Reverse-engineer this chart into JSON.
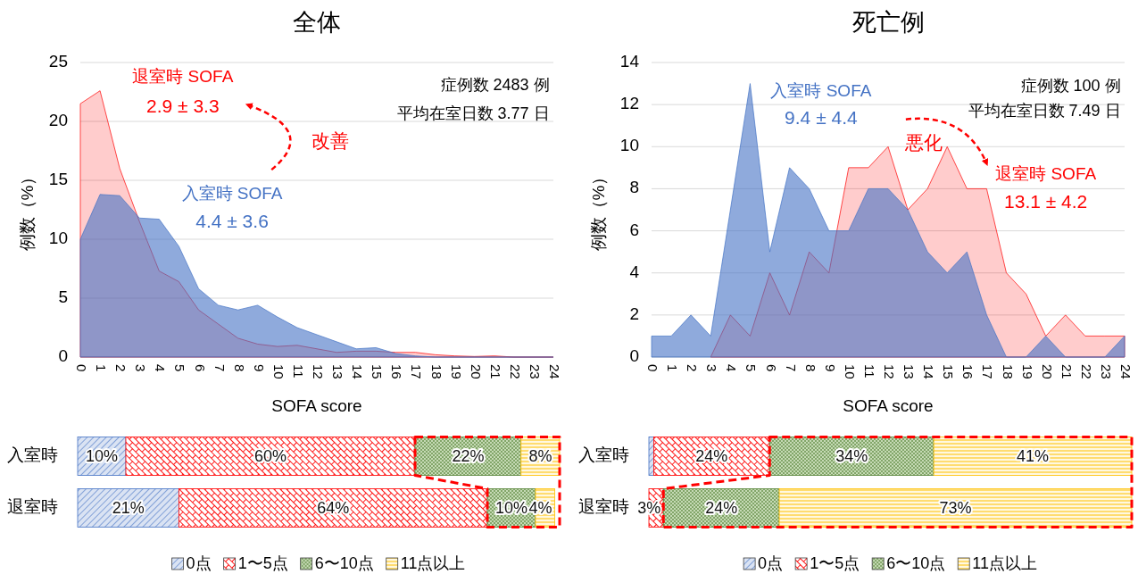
{
  "chart_data": [
    {
      "type": "area",
      "title": "全体",
      "xlabel": "SOFA score",
      "ylabel": "例数（%）",
      "grid": "y",
      "x": [
        0,
        1,
        2,
        3,
        4,
        5,
        6,
        7,
        8,
        9,
        10,
        11,
        12,
        13,
        14,
        15,
        16,
        17,
        18,
        19,
        20,
        21,
        22,
        23,
        24
      ],
      "xlim": [
        0,
        24
      ],
      "xticks": [
        0,
        1,
        2,
        3,
        4,
        5,
        6,
        7,
        8,
        9,
        10,
        11,
        12,
        13,
        14,
        15,
        16,
        17,
        18,
        19,
        20,
        21,
        22,
        23,
        24
      ],
      "ylim": [
        0,
        25
      ],
      "yticks": [
        0,
        5,
        10,
        15,
        20,
        25
      ],
      "series": [
        {
          "name": "退室時 SOFA",
          "color": "#ff0000",
          "values": [
            21.5,
            22.6,
            16,
            11.5,
            7.3,
            6.4,
            4.0,
            2.8,
            1.6,
            1.1,
            0.9,
            1.0,
            0.7,
            0.4,
            0.5,
            0.5,
            0.4,
            0.4,
            0.2,
            0.1,
            0.05,
            0.1,
            0,
            0,
            0
          ]
        },
        {
          "name": "入室時 SOFA",
          "color": "#4472c4",
          "values": [
            10,
            13.8,
            13.7,
            11.8,
            11.7,
            9.4,
            5.8,
            4.4,
            4.0,
            4.4,
            3.4,
            2.5,
            1.9,
            1.3,
            0.7,
            0.8,
            0.3,
            0.1,
            0,
            0,
            0,
            0,
            0,
            0,
            0
          ]
        }
      ],
      "annotations": [
        "2.9 ± 3.3",
        "4.4 ± 3.6",
        "改善",
        "症例数 2483 例",
        "平均在室日数 3.77 日"
      ]
    },
    {
      "type": "area",
      "title": "死亡例",
      "xlabel": "SOFA score",
      "ylabel": "例数（%）",
      "grid": "y",
      "x": [
        0,
        1,
        2,
        3,
        4,
        5,
        6,
        7,
        8,
        9,
        10,
        11,
        12,
        13,
        14,
        15,
        16,
        17,
        18,
        19,
        20,
        21,
        22,
        23,
        24
      ],
      "xlim": [
        0,
        24
      ],
      "xticks": [
        0,
        1,
        2,
        3,
        4,
        5,
        6,
        7,
        8,
        9,
        10,
        11,
        12,
        13,
        14,
        15,
        16,
        17,
        18,
        19,
        20,
        21,
        22,
        23,
        24
      ],
      "ylim": [
        0,
        14
      ],
      "yticks": [
        0,
        2,
        4,
        6,
        8,
        10,
        12,
        14
      ],
      "series": [
        {
          "name": "退室時 SOFA",
          "color": "#ff0000",
          "values": [
            null,
            null,
            null,
            0,
            2,
            1,
            4,
            2,
            5,
            4,
            9,
            9,
            10,
            7,
            8,
            10,
            8,
            8,
            4,
            3,
            1,
            2,
            1,
            1,
            1
          ]
        },
        {
          "name": "入室時 SOFA",
          "color": "#4472c4",
          "values": [
            1,
            1,
            2,
            1,
            7,
            13,
            5,
            9,
            8,
            6,
            6,
            8,
            8,
            7,
            5,
            4,
            5,
            2,
            0,
            0,
            1,
            0,
            0,
            0,
            1
          ]
        }
      ],
      "annotations": [
        "9.4 ± 4.4",
        "13.1 ± 4.2",
        "悪化",
        "症例数 100 例",
        "平均在室日数 7.49 日"
      ]
    },
    {
      "type": "bar",
      "orientation": "horizontal",
      "stacked": true,
      "legend": "bottom",
      "categories": [
        "入室時",
        "退室時"
      ],
      "series": [
        {
          "name": "0点",
          "color": "#4472c4",
          "values": [
            10,
            21
          ],
          "value_labels": [
            "10%",
            "21%"
          ]
        },
        {
          "name": "1〜5点",
          "color": "#ff0000",
          "values": [
            60,
            64
          ],
          "value_labels": [
            "60%",
            "64%"
          ]
        },
        {
          "name": "6〜10点",
          "color": "#548235",
          "values": [
            22,
            10
          ],
          "value_labels": [
            "22%",
            "10%"
          ]
        },
        {
          "name": "11点以上",
          "color": "#ffc000",
          "values": [
            8,
            4
          ],
          "value_labels": [
            "8%",
            "4%"
          ]
        }
      ]
    },
    {
      "type": "bar",
      "orientation": "horizontal",
      "stacked": true,
      "legend": "bottom",
      "categories": [
        "入室時",
        "退室時"
      ],
      "series": [
        {
          "name": "0点",
          "color": "#4472c4",
          "values": [
            1,
            0
          ],
          "value_labels": [
            null,
            null
          ]
        },
        {
          "name": "1〜5点",
          "color": "#ff0000",
          "values": [
            24,
            3
          ],
          "value_labels": [
            "24%",
            "3%"
          ]
        },
        {
          "name": "6〜10点",
          "color": "#548235",
          "values": [
            34,
            24
          ],
          "value_labels": [
            "34%",
            "24%"
          ]
        },
        {
          "name": "11点以上",
          "color": "#ffc000",
          "values": [
            41,
            73
          ],
          "value_labels": [
            "41%",
            "73%"
          ]
        }
      ]
    }
  ]
}
